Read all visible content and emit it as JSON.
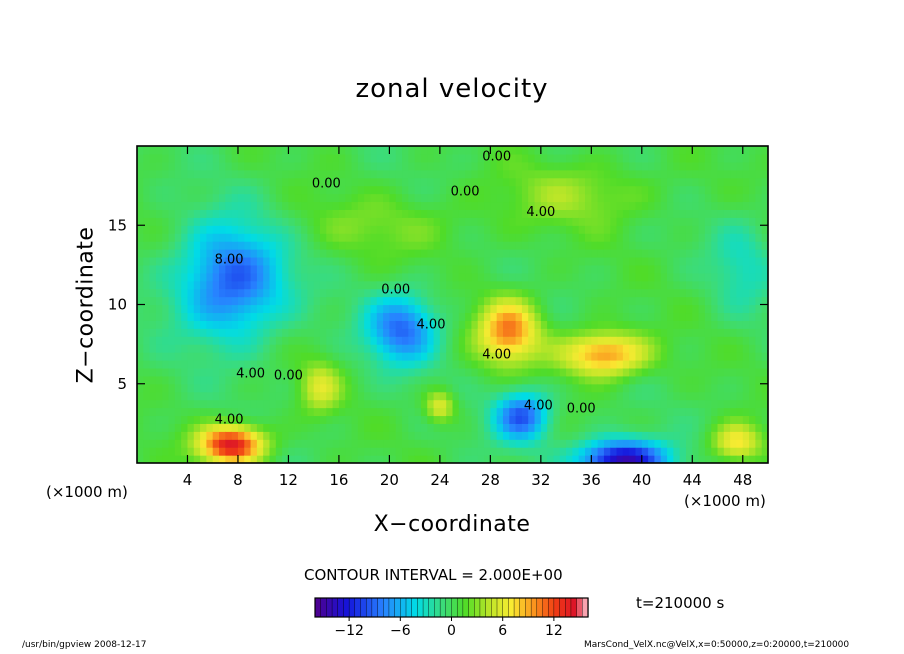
{
  "chart_data": {
    "type": "heatmap",
    "title": "zonal velocity",
    "xlabel": "X−coordinate",
    "ylabel": "Z−coordinate",
    "x_unit_left": "(×1000 m)",
    "x_unit_right": "(×1000 m)",
    "xlim": [
      0,
      50
    ],
    "ylim": [
      0,
      20
    ],
    "x_ticks": [
      4,
      8,
      12,
      16,
      20,
      24,
      28,
      32,
      36,
      40,
      44,
      48
    ],
    "y_ticks": [
      5,
      10,
      15
    ],
    "contour_interval_text": "CONTOUR INTERVAL = 2.000E+00",
    "time_text": "t=210000 s",
    "colorbar": {
      "min": -16,
      "max": 16,
      "ticks": [
        -12,
        -6,
        0,
        6,
        12
      ]
    },
    "contour_labels": [
      {
        "text": "0.00",
        "x": 28.5,
        "y": 19.3
      },
      {
        "text": "0.00",
        "x": 15.0,
        "y": 17.6
      },
      {
        "text": "0.00",
        "x": 26.0,
        "y": 17.1
      },
      {
        "text": "4.00",
        "x": 32.0,
        "y": 15.8
      },
      {
        "text": "8.00",
        "x": 7.3,
        "y": 12.8
      },
      {
        "text": "0.00",
        "x": 20.5,
        "y": 10.9
      },
      {
        "text": "4.00",
        "x": 23.3,
        "y": 8.7
      },
      {
        "text": "4.00",
        "x": 28.5,
        "y": 6.8
      },
      {
        "text": "4.00",
        "x": 9.0,
        "y": 5.6
      },
      {
        "text": "0.00",
        "x": 12.0,
        "y": 5.5
      },
      {
        "text": "4.00",
        "x": 7.3,
        "y": 2.7
      },
      {
        "text": "4.00",
        "x": 31.8,
        "y": 3.6
      },
      {
        "text": "0.00",
        "x": 35.2,
        "y": 3.4
      }
    ],
    "field_features": [
      {
        "x": 7.5,
        "z": 11.5,
        "value": -10,
        "sx": 4.2,
        "sz": 3.6
      },
      {
        "x": 21.0,
        "z": 8.5,
        "value": -9,
        "sx": 2.8,
        "sz": 2.2
      },
      {
        "x": 30.5,
        "z": 3.0,
        "value": -10,
        "sx": 2.2,
        "sz": 1.6
      },
      {
        "x": 38.5,
        "z": 0.2,
        "value": -15,
        "sx": 3.5,
        "sz": 1.3
      },
      {
        "x": 29.5,
        "z": 8.4,
        "value": 10,
        "sx": 2.4,
        "sz": 2.0
      },
      {
        "x": 37.0,
        "z": 6.9,
        "value": 10,
        "sx": 3.4,
        "sz": 1.4
      },
      {
        "x": 7.5,
        "z": 1.2,
        "value": 14,
        "sx": 2.6,
        "sz": 1.2
      },
      {
        "x": 24.0,
        "z": 3.6,
        "value": 6,
        "sx": 1.2,
        "sz": 1.0
      },
      {
        "x": 14.5,
        "z": 4.8,
        "value": 5,
        "sx": 1.6,
        "sz": 1.6
      },
      {
        "x": 47.5,
        "z": 1.3,
        "value": 7,
        "sx": 2.0,
        "sz": 1.2
      },
      {
        "x": 48.0,
        "z": 12.5,
        "value": -3,
        "sx": 2.5,
        "sz": 3.0
      },
      {
        "x": 35.0,
        "z": 17.0,
        "value": 3,
        "sx": 6.0,
        "sz": 2.0
      },
      {
        "x": 20.0,
        "z": 15.0,
        "value": 2,
        "sx": 8.0,
        "sz": 2.0
      }
    ]
  },
  "footer": {
    "left": "/usr/bin/gpview   2008-12-17",
    "right": "MarsCond_VelX.nc@VelX,x=0:50000,z=0:20000,t=210000"
  },
  "colors": {
    "axes": "#000000",
    "background": "#ffffff"
  }
}
